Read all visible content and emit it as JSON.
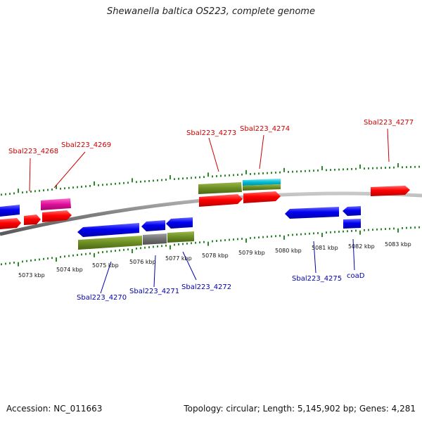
{
  "title": "Shewanella baltica OS223, complete genome",
  "accession_text": "Accession: NC_011663",
  "stats_text": "Topology: circular; Length: 5,145,902 bp; Genes: 4,281",
  "kbp_labels": [
    "5073 kbp",
    "5074 kbp",
    "5075 kbp",
    "5076 kbp",
    "5077 kbp",
    "5078 kbp",
    "5079 kbp",
    "5080 kbp",
    "5081 kbp",
    "5082 kbp",
    "5083 kbp"
  ],
  "gene_labels_top": [
    "Sbal223_4268",
    "Sbal223_4269",
    "Sbal223_4273",
    "Sbal223_4274",
    "Sbal223_4277"
  ],
  "gene_labels_bottom": [
    "Sbal223_4270",
    "Sbal223_4271",
    "Sbal223_4272",
    "Sbal223_4275",
    "coaD"
  ],
  "colors": {
    "forward_label": "#cc0000",
    "reverse_label": "#0000aa",
    "forward_gene": "#ff0000",
    "reverse_gene": "#0000ee",
    "green_feature": "#6b8e23",
    "cyan_feature": "#00bcd4",
    "magenta_feature": "#e0109a",
    "gray_feature": "#707070",
    "backbone": "#888888",
    "tick": "#2a8a2a"
  }
}
